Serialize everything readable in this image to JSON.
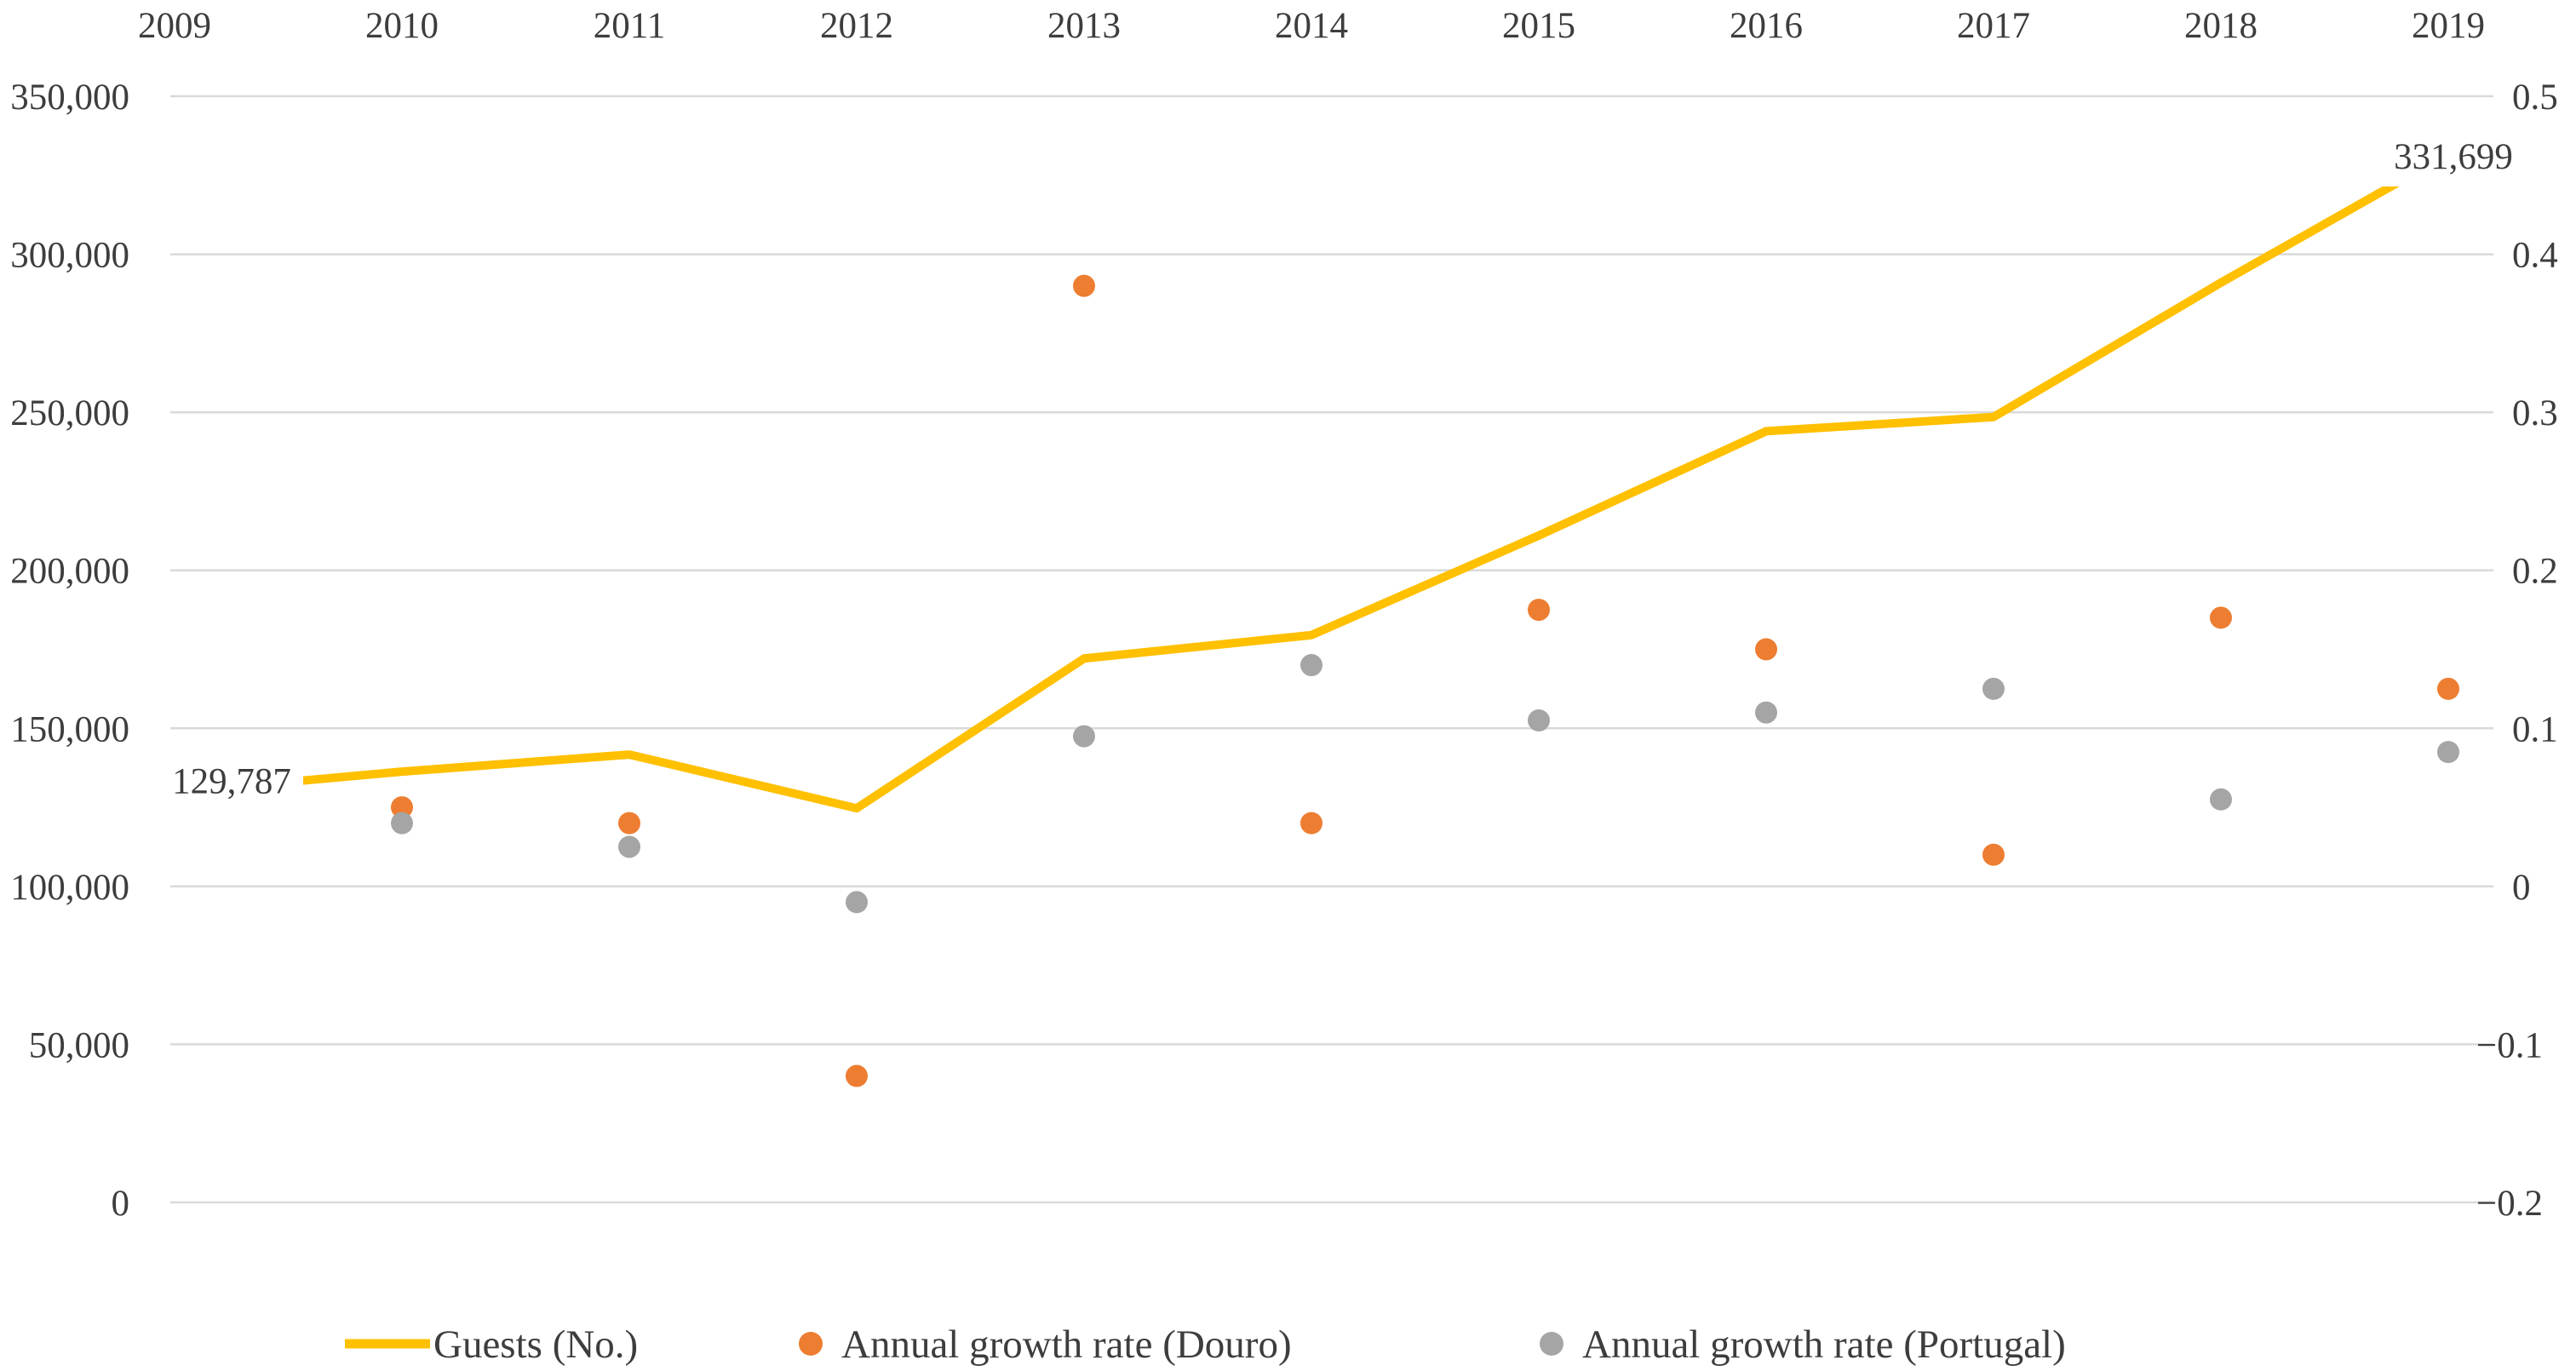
{
  "chart_data": {
    "type": "line+scatter",
    "title": "",
    "xlabel": "",
    "ylabel_left": "",
    "ylabel_right": "",
    "grid": true,
    "legend_position": "bottom",
    "x": [
      2009,
      2010,
      2011,
      2012,
      2013,
      2014,
      2015,
      2016,
      2017,
      2018,
      2019
    ],
    "series": [
      {
        "name": "Guests (No.)",
        "type": "line",
        "axis": "left",
        "color": "#FFC000",
        "values": [
          129787,
          136300,
          141700,
          124700,
          172100,
          179500,
          211000,
          244000,
          248500,
          291000,
          331699
        ]
      },
      {
        "name": "Annual growth rate (Douro)",
        "type": "scatter",
        "axis": "right",
        "color": "#ED7D31",
        "values": [
          null,
          0.05,
          0.04,
          -0.12,
          0.38,
          0.04,
          0.175,
          0.15,
          0.02,
          0.17,
          0.125
        ]
      },
      {
        "name": "Annual growth rate (Portugal)",
        "type": "scatter",
        "axis": "right",
        "color": "#A5A5A5",
        "values": [
          null,
          0.04,
          0.025,
          -0.01,
          0.095,
          0.14,
          0.105,
          0.11,
          0.125,
          0.055,
          0.085
        ]
      }
    ],
    "left_axis": {
      "range": [
        0,
        350000
      ],
      "ticks": [
        {
          "label": "350,000",
          "value": 350000
        },
        {
          "label": "300,000",
          "value": 300000
        },
        {
          "label": "250,000",
          "value": 250000
        },
        {
          "label": "200,000",
          "value": 200000
        },
        {
          "label": "150,000",
          "value": 150000
        },
        {
          "label": "100,000",
          "value": 100000
        },
        {
          "label": "50,000",
          "value": 50000
        },
        {
          "label": "0",
          "value": 0
        }
      ]
    },
    "right_axis": {
      "range": [
        -0.2,
        0.5
      ],
      "ticks": [
        {
          "label": "0.5",
          "value": 0.5
        },
        {
          "label": "0.4",
          "value": 0.4
        },
        {
          "label": "0.3",
          "value": 0.3
        },
        {
          "label": "0.2",
          "value": 0.2
        },
        {
          "label": "0.1",
          "value": 0.1
        },
        {
          "label": "0",
          "value": 0.0
        },
        {
          "label": "−0.1",
          "value": -0.1
        },
        {
          "label": "−0.2",
          "value": -0.2
        }
      ]
    },
    "data_labels": [
      {
        "series": 0,
        "index": 0,
        "text": "129,787"
      },
      {
        "series": 0,
        "index": 10,
        "text": "331,699"
      }
    ],
    "colors": {
      "gridline": "#D9D9D9",
      "text": "#3d3d3d",
      "background": "#FFFFFF"
    }
  }
}
